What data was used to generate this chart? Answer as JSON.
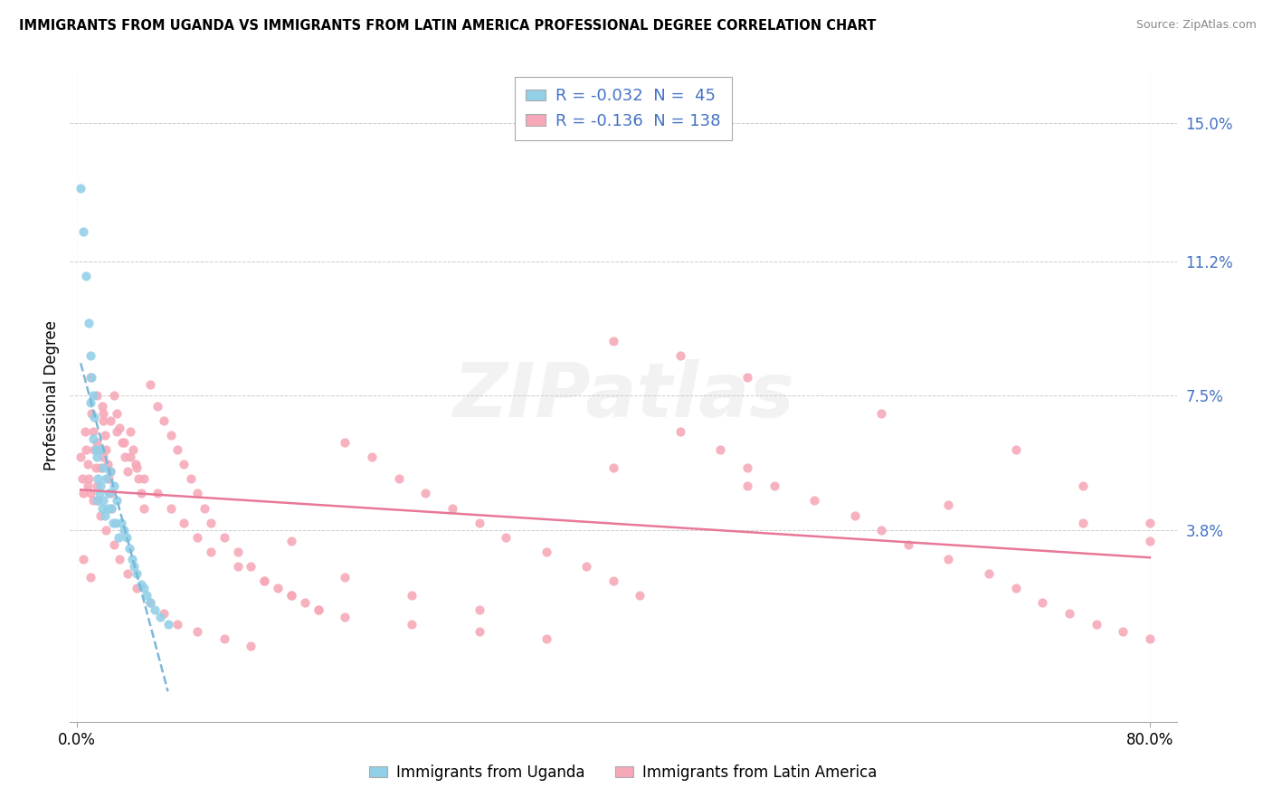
{
  "title": "IMMIGRANTS FROM UGANDA VS IMMIGRANTS FROM LATIN AMERICA PROFESSIONAL DEGREE CORRELATION CHART",
  "source": "Source: ZipAtlas.com",
  "ylabel": "Professional Degree",
  "ytick_labels": [
    "3.8%",
    "7.5%",
    "11.2%",
    "15.0%"
  ],
  "ytick_values": [
    0.038,
    0.075,
    0.112,
    0.15
  ],
  "xlim": [
    -0.005,
    0.82
  ],
  "ylim": [
    -0.015,
    0.165
  ],
  "r_uganda": "-0.032",
  "n_uganda": "45",
  "r_latin": "-0.136",
  "n_latin": "138",
  "uganda_color": "#92d0e8",
  "latin_color": "#f7a8b8",
  "uganda_line_color": "#7ab8d8",
  "latin_line_color": "#e87898",
  "watermark_text": "ZIPatlas",
  "legend_label_uganda": "Immigrants from Uganda",
  "legend_label_latin": "Immigrants from Latin America",
  "uganda_x": [
    0.003,
    0.005,
    0.007,
    0.009,
    0.01,
    0.01,
    0.011,
    0.012,
    0.012,
    0.013,
    0.014,
    0.015,
    0.015,
    0.016,
    0.017,
    0.018,
    0.018,
    0.019,
    0.02,
    0.02,
    0.021,
    0.022,
    0.023,
    0.024,
    0.025,
    0.026,
    0.027,
    0.028,
    0.029,
    0.03,
    0.031,
    0.033,
    0.035,
    0.037,
    0.039,
    0.041,
    0.043,
    0.045,
    0.048,
    0.05,
    0.052,
    0.055,
    0.058,
    0.062,
    0.068
  ],
  "uganda_y": [
    0.132,
    0.12,
    0.108,
    0.095,
    0.086,
    0.073,
    0.08,
    0.075,
    0.063,
    0.069,
    0.06,
    0.058,
    0.046,
    0.052,
    0.048,
    0.06,
    0.05,
    0.044,
    0.055,
    0.046,
    0.042,
    0.052,
    0.044,
    0.048,
    0.054,
    0.044,
    0.04,
    0.05,
    0.04,
    0.046,
    0.036,
    0.04,
    0.038,
    0.036,
    0.033,
    0.03,
    0.028,
    0.026,
    0.023,
    0.022,
    0.02,
    0.018,
    0.016,
    0.014,
    0.012
  ],
  "latin_x": [
    0.003,
    0.004,
    0.005,
    0.006,
    0.007,
    0.008,
    0.009,
    0.01,
    0.011,
    0.012,
    0.013,
    0.014,
    0.015,
    0.016,
    0.017,
    0.018,
    0.019,
    0.02,
    0.021,
    0.022,
    0.023,
    0.024,
    0.025,
    0.026,
    0.028,
    0.03,
    0.032,
    0.034,
    0.036,
    0.038,
    0.04,
    0.042,
    0.044,
    0.046,
    0.048,
    0.05,
    0.055,
    0.06,
    0.065,
    0.07,
    0.075,
    0.08,
    0.085,
    0.09,
    0.095,
    0.1,
    0.11,
    0.12,
    0.13,
    0.14,
    0.15,
    0.16,
    0.17,
    0.18,
    0.2,
    0.22,
    0.24,
    0.26,
    0.28,
    0.3,
    0.32,
    0.35,
    0.38,
    0.4,
    0.42,
    0.45,
    0.48,
    0.5,
    0.52,
    0.55,
    0.58,
    0.6,
    0.62,
    0.65,
    0.68,
    0.7,
    0.72,
    0.74,
    0.76,
    0.78,
    0.8,
    0.01,
    0.015,
    0.02,
    0.025,
    0.03,
    0.035,
    0.04,
    0.045,
    0.05,
    0.06,
    0.07,
    0.08,
    0.09,
    0.1,
    0.12,
    0.14,
    0.16,
    0.18,
    0.2,
    0.25,
    0.3,
    0.35,
    0.4,
    0.45,
    0.5,
    0.6,
    0.7,
    0.75,
    0.8,
    0.008,
    0.012,
    0.018,
    0.022,
    0.028,
    0.032,
    0.038,
    0.045,
    0.055,
    0.065,
    0.075,
    0.09,
    0.11,
    0.13,
    0.16,
    0.2,
    0.25,
    0.3,
    0.4,
    0.5,
    0.65,
    0.75,
    0.8,
    0.005,
    0.01,
    0.015,
    0.02,
    0.025
  ],
  "latin_y": [
    0.058,
    0.052,
    0.048,
    0.065,
    0.06,
    0.056,
    0.052,
    0.048,
    0.07,
    0.065,
    0.06,
    0.055,
    0.05,
    0.046,
    0.06,
    0.055,
    0.072,
    0.068,
    0.064,
    0.06,
    0.056,
    0.052,
    0.048,
    0.044,
    0.075,
    0.07,
    0.066,
    0.062,
    0.058,
    0.054,
    0.065,
    0.06,
    0.056,
    0.052,
    0.048,
    0.044,
    0.078,
    0.072,
    0.068,
    0.064,
    0.06,
    0.056,
    0.052,
    0.048,
    0.044,
    0.04,
    0.036,
    0.032,
    0.028,
    0.024,
    0.022,
    0.02,
    0.018,
    0.016,
    0.062,
    0.058,
    0.052,
    0.048,
    0.044,
    0.04,
    0.036,
    0.032,
    0.028,
    0.024,
    0.02,
    0.065,
    0.06,
    0.055,
    0.05,
    0.046,
    0.042,
    0.038,
    0.034,
    0.03,
    0.026,
    0.022,
    0.018,
    0.015,
    0.012,
    0.01,
    0.008,
    0.08,
    0.075,
    0.07,
    0.068,
    0.065,
    0.062,
    0.058,
    0.055,
    0.052,
    0.048,
    0.044,
    0.04,
    0.036,
    0.032,
    0.028,
    0.024,
    0.02,
    0.016,
    0.014,
    0.012,
    0.01,
    0.008,
    0.09,
    0.086,
    0.08,
    0.07,
    0.06,
    0.05,
    0.04,
    0.05,
    0.046,
    0.042,
    0.038,
    0.034,
    0.03,
    0.026,
    0.022,
    0.018,
    0.015,
    0.012,
    0.01,
    0.008,
    0.006,
    0.035,
    0.025,
    0.02,
    0.016,
    0.055,
    0.05,
    0.045,
    0.04,
    0.035,
    0.03,
    0.025,
    0.062,
    0.058,
    0.054
  ]
}
